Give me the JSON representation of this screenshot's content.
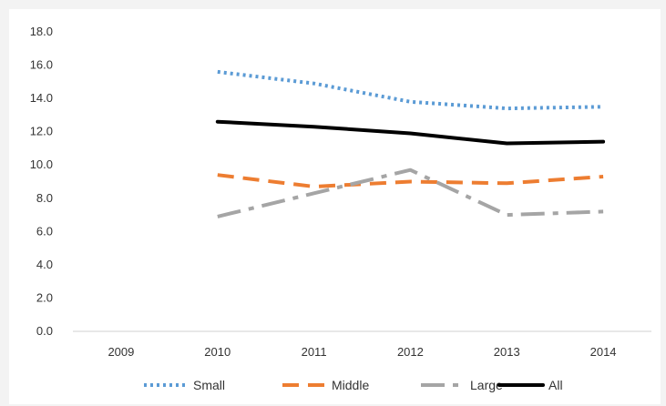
{
  "chart_data": {
    "type": "line",
    "title": "",
    "xlabel": "",
    "ylabel": "",
    "categories": [
      "2009",
      "2010",
      "2011",
      "2012",
      "2013",
      "2014"
    ],
    "ylim": [
      0,
      18
    ],
    "yticks": [
      "0.0",
      "2.0",
      "4.0",
      "6.0",
      "8.0",
      "10.0",
      "12.0",
      "14.0",
      "16.0",
      "18.0"
    ],
    "grid": false,
    "legend_position": "bottom",
    "series": [
      {
        "name": "Small",
        "values": [
          null,
          15.6,
          14.9,
          13.8,
          13.4,
          13.5
        ],
        "color": "#5b9bd5",
        "style": "dotted"
      },
      {
        "name": "Middle",
        "values": [
          null,
          9.4,
          8.7,
          9.0,
          8.9,
          9.3
        ],
        "color": "#ed7d31",
        "style": "dashed"
      },
      {
        "name": "Large",
        "values": [
          null,
          6.9,
          8.3,
          9.7,
          7.0,
          7.2
        ],
        "color": "#a5a5a5",
        "style": "dashdot"
      },
      {
        "name": "All",
        "values": [
          null,
          12.6,
          12.3,
          11.9,
          11.3,
          11.4
        ],
        "color": "#000000",
        "style": "solid"
      }
    ]
  }
}
